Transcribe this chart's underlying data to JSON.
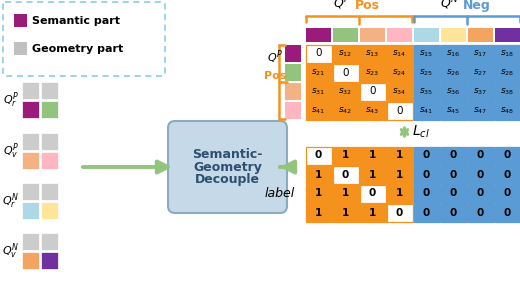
{
  "orange": "#F5921E",
  "blue_neg": "#5B9BD5",
  "green_arrow": "#92C47C",
  "pos_bg": "#F5921E",
  "neg_bg": "#5B9BD5",
  "white": "#FFFFFF",
  "box_fill": "#C5D9E8",
  "box_edge": "#8AACBE",
  "legend_edge": "#7EC8E3",
  "sem_color": "#9B1B7A",
  "geo_color": "#C0C0C0",
  "pos_cols": [
    "#9B1B7A",
    "#93C47D",
    "#F4B183",
    "#FFB6C1"
  ],
  "neg_cols": [
    "#ADD8E6",
    "#FFE599",
    "#F4A460",
    "#7030A0"
  ],
  "row_colors": [
    "#9B1B7A",
    "#93C47D",
    "#F4B183",
    "#FFB6C1"
  ],
  "queries": [
    {
      "label": "$Q^P_r$",
      "sem": "#9B1B7A",
      "geo": "#93C47D"
    },
    {
      "label": "$Q^P_v$",
      "sem": "#F4B183",
      "geo": "#FFB6C1"
    },
    {
      "label": "$Q^N_r$",
      "sem": "#ADD8E6",
      "geo": "#FFE599"
    },
    {
      "label": "$Q^N_v$",
      "sem": "#F4A460",
      "geo": "#7030A0"
    }
  ],
  "sim_labels": [
    [
      "0",
      "s_{12}",
      "s_{13}",
      "s_{14}",
      "s_{15}",
      "s_{16}",
      "s_{17}",
      "s_{18}"
    ],
    [
      "s_{21}",
      "0",
      "s_{23}",
      "s_{24}",
      "s_{25}",
      "s_{26}",
      "s_{27}",
      "s_{28}"
    ],
    [
      "s_{31}",
      "s_{32}",
      "0",
      "s_{34}",
      "s_{35}",
      "s_{36}",
      "s_{37}",
      "s_{38}"
    ],
    [
      "s_{41}",
      "s_{42}",
      "s_{43}",
      "0",
      "s_{41}",
      "s_{45}",
      "s_{47}",
      "s_{48}"
    ]
  ],
  "label_matrix": [
    [
      "0",
      "1",
      "1",
      "1",
      "0",
      "0",
      "0",
      "0"
    ],
    [
      "1",
      "0",
      "1",
      "1",
      "0",
      "0",
      "0",
      "0"
    ],
    [
      "1",
      "1",
      "0",
      "1",
      "0",
      "0",
      "0",
      "0"
    ],
    [
      "1",
      "1",
      "1",
      "0",
      "0",
      "0",
      "0",
      "0"
    ]
  ]
}
